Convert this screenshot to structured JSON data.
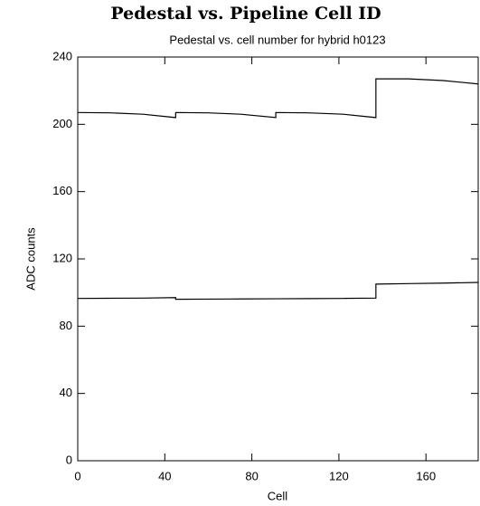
{
  "chart_data": {
    "type": "line",
    "title": "Pedestal vs. Pipeline Cell ID",
    "subtitle": "Pedestal vs. cell number for hybrid h0123",
    "x_label": "Cell",
    "y_label": "ADC counts",
    "x": [
      0,
      15,
      30,
      45,
      45,
      60,
      75,
      91,
      91,
      106,
      122,
      137,
      137,
      152,
      168,
      184
    ],
    "series": [
      {
        "color": "#000000",
        "values": [
          207,
          206.8,
          206,
          204,
          207,
          206.8,
          206,
          204,
          207,
          206.8,
          206,
          204,
          227,
          227,
          226,
          224
        ]
      },
      {
        "color": "#000000",
        "values": [
          96.5,
          96.6,
          96.7,
          97,
          96,
          96.1,
          96.2,
          96.3,
          96.3,
          96.4,
          96.5,
          96.7,
          105,
          105.3,
          105.6,
          106
        ]
      }
    ],
    "xlim": [
      0,
      184
    ],
    "xticks": [
      0,
      40,
      80,
      120,
      160
    ],
    "ylim": [
      0,
      240
    ],
    "yticks": [
      0,
      40,
      80,
      120,
      160,
      200,
      240
    ],
    "grid": false
  }
}
